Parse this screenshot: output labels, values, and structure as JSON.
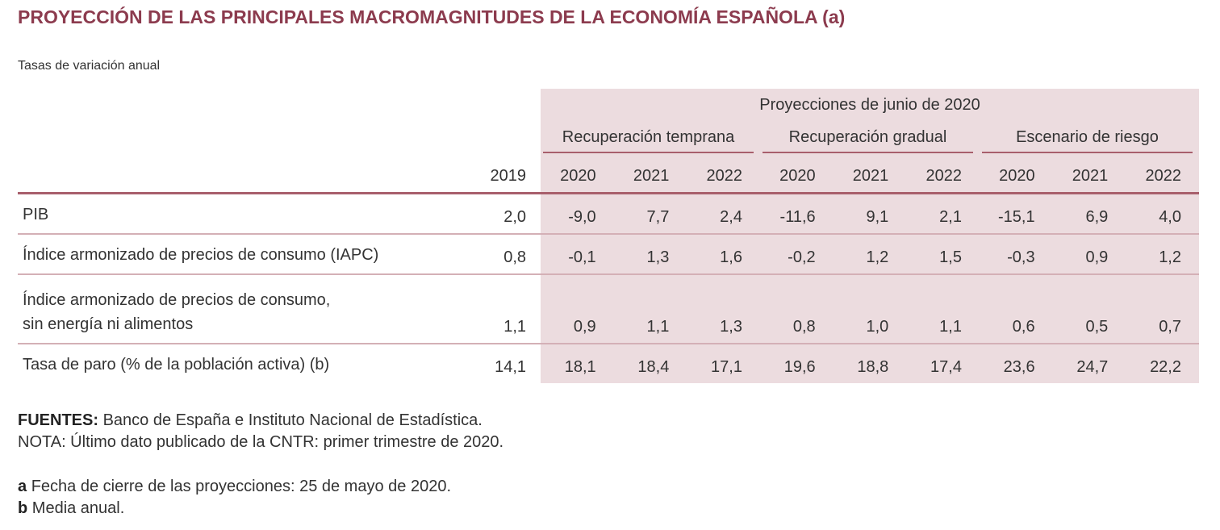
{
  "header": {
    "title": "PROYECCIÓN DE LAS PRINCIPALES MACROMAGNITUDES DE LA ECONOMÍA ESPAÑOLA",
    "title_note": "(a)",
    "subtitle": "Tasas de variación anual"
  },
  "table": {
    "super_header": "Proyecciones de junio de 2020",
    "groups": [
      "Recuperación temprana",
      "Recuperación gradual",
      "Escenario de riesgo"
    ],
    "columns": [
      "2019",
      "2020",
      "2021",
      "2022",
      "2020",
      "2021",
      "2022",
      "2020",
      "2021",
      "2022"
    ],
    "rows": [
      {
        "label": "PIB",
        "values": [
          "2,0",
          "-9,0",
          "7,7",
          "2,4",
          "-11,6",
          "9,1",
          "2,1",
          "-15,1",
          "6,9",
          "4,0"
        ]
      },
      {
        "label": "Índice armonizado de precios de consumo (IAPC)",
        "values": [
          "0,8",
          "-0,1",
          "1,3",
          "1,6",
          "-0,2",
          "1,2",
          "1,5",
          "-0,3",
          "0,9",
          "1,2"
        ]
      },
      {
        "label": "Índice armonizado de precios de consumo,\nsin energía ni alimentos",
        "values": [
          "1,1",
          "0,9",
          "1,1",
          "1,3",
          "0,8",
          "1,0",
          "1,1",
          "0,6",
          "0,5",
          "0,7"
        ]
      },
      {
        "label": "Tasa de paro (% de la población activa) (b)",
        "values": [
          "14,1",
          "18,1",
          "18,4",
          "17,1",
          "19,6",
          "18,8",
          "17,4",
          "23,6",
          "24,7",
          "22,2"
        ]
      }
    ]
  },
  "footer": {
    "sources_label": "FUENTES:",
    "sources": "Banco de España e Instituto Nacional de Estadística.",
    "note": "NOTA: Último dato publicado de la CNTR: primer trimestre de 2020.",
    "notes": [
      {
        "key": "a",
        "text": "Fecha de cierre de las proyecciones: 25 de mayo de 2020."
      },
      {
        "key": "b",
        "text": "Media anual."
      }
    ]
  }
}
